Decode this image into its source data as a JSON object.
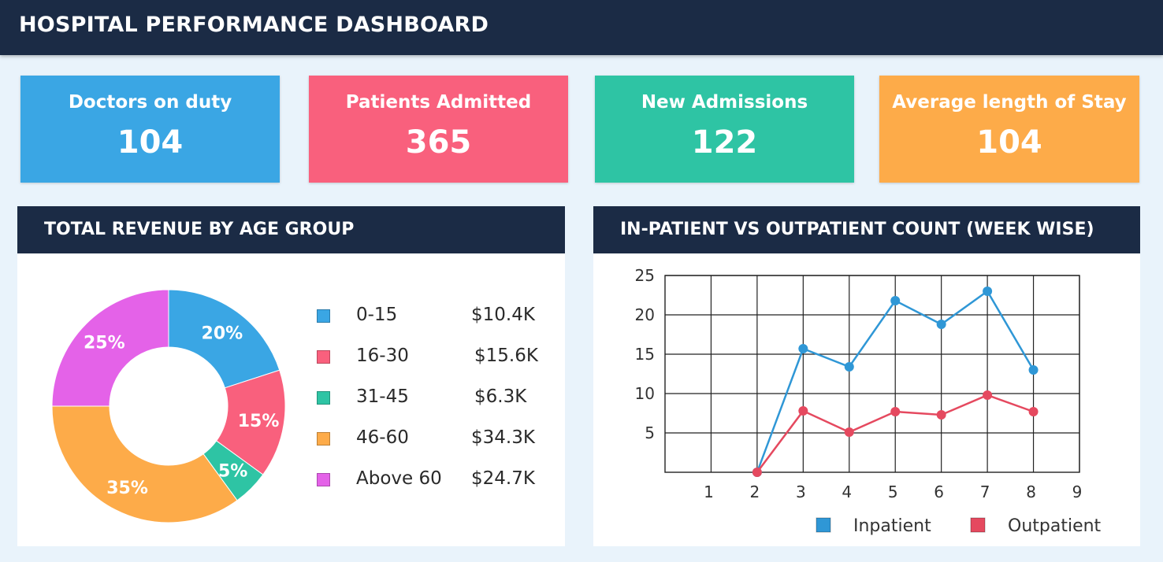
{
  "header": {
    "title": "HOSPITAL PERFORMANCE DASHBOARD"
  },
  "kpis": [
    {
      "label": "Doctors on duty",
      "value": "104",
      "color": "#3aa6e4"
    },
    {
      "label": "Patients Admitted",
      "value": "365",
      "color": "#f9607d"
    },
    {
      "label": "New Admissions",
      "value": "122",
      "color": "#2ec4a4"
    },
    {
      "label": "Average length of Stay",
      "value": "104",
      "color": "#fdab49"
    }
  ],
  "revenue_panel": {
    "title": "TOTAL REVENUE BY AGE GROUP",
    "legend": [
      {
        "group": "0-15",
        "revenue": "$10.4K",
        "color": "#3aa6e4"
      },
      {
        "group": "16-30",
        "revenue": "$15.6K",
        "color": "#f9607d"
      },
      {
        "group": "31-45",
        "revenue": "$6.3K",
        "color": "#2ec4a4"
      },
      {
        "group": "46-60",
        "revenue": "$34.3K",
        "color": "#fdab49"
      },
      {
        "group": "Above 60",
        "revenue": "$24.7K",
        "color": "#e462e8"
      }
    ]
  },
  "patient_panel": {
    "title": "IN-PATIENT VS OUTPATIENT COUNT (WEEK WISE)"
  },
  "chart_data": [
    {
      "type": "pie",
      "title": "TOTAL REVENUE BY AGE GROUP",
      "donut": true,
      "categories": [
        "0-15",
        "16-30",
        "31-45",
        "46-60",
        "Above 60"
      ],
      "values": [
        20,
        15,
        5,
        35,
        25
      ],
      "value_labels": [
        "20%",
        "15%",
        "5%",
        "35%",
        "25%"
      ],
      "colors": [
        "#3aa6e4",
        "#f9607d",
        "#2ec4a4",
        "#fdab49",
        "#e462e8"
      ],
      "legend_position": "right"
    },
    {
      "type": "line",
      "title": "IN-PATIENT VS OUTPATIENT COUNT (WEEK WISE)",
      "xlim": [
        0,
        9
      ],
      "ylim": [
        0,
        25
      ],
      "x_ticks": [
        1,
        2,
        3,
        4,
        5,
        6,
        7,
        8,
        9
      ],
      "y_ticks": [
        5,
        10,
        15,
        20,
        25
      ],
      "grid": true,
      "legend_position": "bottom-right",
      "series": [
        {
          "name": "Inpatient",
          "color": "#2f97d6",
          "x": [
            2,
            3,
            4,
            5,
            6,
            7,
            8
          ],
          "values": [
            0,
            15.7,
            13.4,
            21.8,
            18.8,
            23,
            13
          ]
        },
        {
          "name": "Outpatient",
          "color": "#e5495f",
          "x": [
            2,
            3,
            4,
            5,
            6,
            7,
            8
          ],
          "values": [
            0,
            7.8,
            5.1,
            7.7,
            7.3,
            9.8,
            7.7
          ]
        }
      ]
    }
  ]
}
